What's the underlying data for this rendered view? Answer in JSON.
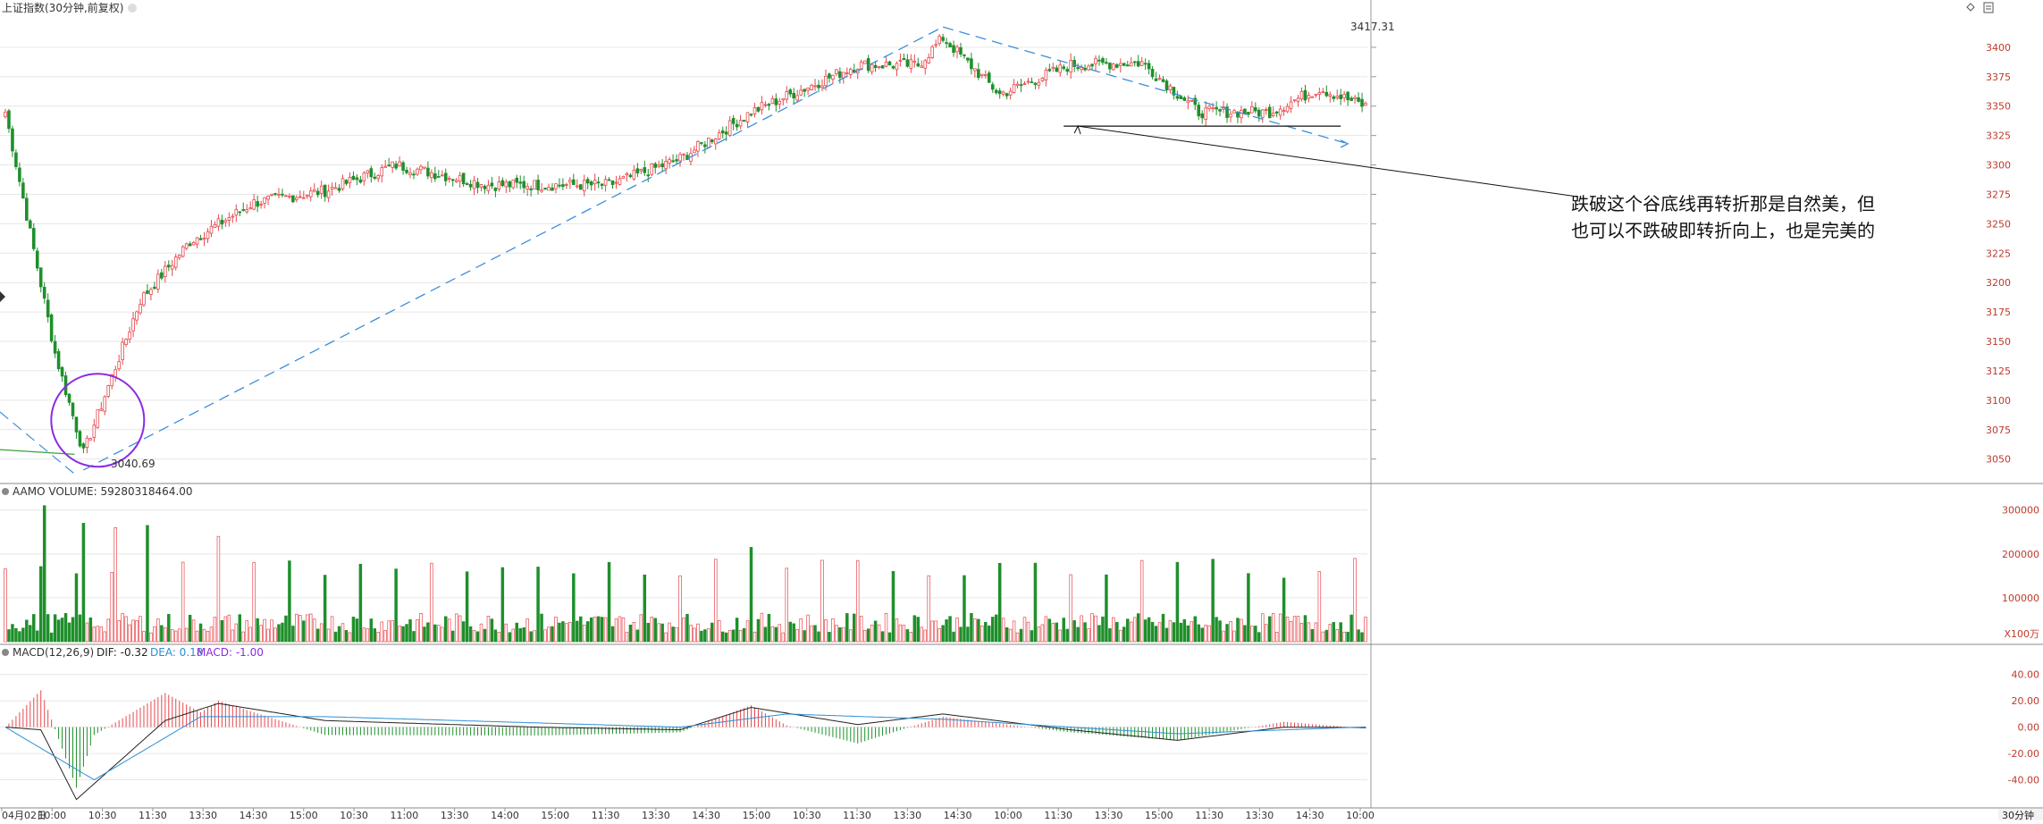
{
  "header": {
    "title": "上证指数(30分钟,前复权)",
    "volume_title": "AAMO VOLUME: 59280318464.00",
    "macd_title": "MACD(12,26,9)",
    "dif_label": "DIF: -0.32",
    "dea_label": "DEA: 0.18",
    "macd_label": "MACD: -1.00",
    "period_label": "30分钟"
  },
  "annotation": {
    "line1": "跌破这个谷底线再转折那是自然美，但",
    "line2": "也可以不跌破即转折向上，也是完美的",
    "high_label": "3417.31",
    "low_label": "3040.69"
  },
  "colors": {
    "up": "#e8484d",
    "down": "#1f8f2b",
    "dashed": "#3a8fdc",
    "circle": "#8a2be2",
    "dif": "#222222",
    "dea": "#2b8fd6",
    "axis_text": "#c0392b",
    "grid": "#e6e6e6"
  },
  "chart_data": [
    {
      "type": "candlestick",
      "title": "上证指数(30分钟,前复权)",
      "y_ticks": [
        3050,
        3075,
        3100,
        3125,
        3150,
        3175,
        3200,
        3225,
        3250,
        3275,
        3300,
        3325,
        3350,
        3375,
        3400
      ],
      "ylim": [
        3030,
        3425
      ],
      "x_tick_labels": [
        "04月02日",
        "10:00",
        "10:30",
        "11:30",
        "13:30",
        "14:30",
        "15:00",
        "10:30",
        "11:00",
        "13:30",
        "14:00",
        "15:00",
        "11:30",
        "13:30",
        "14:30",
        "15:00",
        "10:30",
        "11:30",
        "13:30",
        "14:30",
        "10:00",
        "11:30",
        "13:30",
        "15:00",
        "11:30",
        "13:30",
        "14:30",
        "10:00"
      ],
      "annotated_high": 3417.31,
      "annotated_low": 3040.69,
      "support_level": 3333,
      "key_closes": [
        {
          "bar": 0,
          "close": 3345
        },
        {
          "bar": 14,
          "close": 3140
        },
        {
          "bar": 22,
          "close": 3055
        },
        {
          "bar": 38,
          "close": 3185
        },
        {
          "bar": 52,
          "close": 3235
        },
        {
          "bar": 70,
          "close": 3268
        },
        {
          "bar": 90,
          "close": 3278
        },
        {
          "bar": 110,
          "close": 3300
        },
        {
          "bar": 136,
          "close": 3283
        },
        {
          "bar": 170,
          "close": 3283
        },
        {
          "bar": 190,
          "close": 3305
        },
        {
          "bar": 210,
          "close": 3345
        },
        {
          "bar": 240,
          "close": 3385
        },
        {
          "bar": 257,
          "close": 3385
        },
        {
          "bar": 264,
          "close": 3408
        },
        {
          "bar": 280,
          "close": 3360
        },
        {
          "bar": 300,
          "close": 3385
        },
        {
          "bar": 320,
          "close": 3387
        },
        {
          "bar": 336,
          "close": 3345
        },
        {
          "bar": 356,
          "close": 3345
        },
        {
          "bar": 370,
          "close": 3365
        },
        {
          "bar": 383,
          "close": 3350
        }
      ]
    },
    {
      "type": "bar",
      "title": "AAMO VOLUME: 59280318464.00",
      "y_ticks": [
        100000,
        200000,
        300000
      ],
      "unit": "X100万",
      "ylim": [
        0,
        330000
      ],
      "peaks": [
        {
          "bar": 11,
          "value": 310000
        },
        {
          "bar": 22,
          "value": 270000
        },
        {
          "bar": 31,
          "value": 260000
        },
        {
          "bar": 40,
          "value": 265000
        },
        {
          "bar": 60,
          "value": 240000
        },
        {
          "bar": 210,
          "value": 215000
        },
        {
          "bar": 240,
          "value": 185000
        },
        {
          "bar": 360,
          "value": 145000
        }
      ]
    },
    {
      "type": "line",
      "title": "MACD(12,26,9)",
      "series": [
        {
          "name": "DIF",
          "color": "#222222"
        },
        {
          "name": "DEA",
          "color": "#2b8fd6"
        },
        {
          "name": "MACD",
          "color": "#8a2be2"
        }
      ],
      "y_ticks": [
        40,
        20,
        0,
        -20,
        -40
      ],
      "ylim": [
        -60,
        50
      ],
      "dif_points": [
        {
          "bar": 0,
          "value": 0
        },
        {
          "bar": 10,
          "value": -2
        },
        {
          "bar": 20,
          "value": -55
        },
        {
          "bar": 45,
          "value": 5
        },
        {
          "bar": 60,
          "value": 18
        },
        {
          "bar": 90,
          "value": 5
        },
        {
          "bar": 150,
          "value": 0
        },
        {
          "bar": 190,
          "value": -2
        },
        {
          "bar": 210,
          "value": 15
        },
        {
          "bar": 240,
          "value": 2
        },
        {
          "bar": 264,
          "value": 10
        },
        {
          "bar": 300,
          "value": -2
        },
        {
          "bar": 330,
          "value": -10
        },
        {
          "bar": 360,
          "value": 0
        },
        {
          "bar": 383,
          "value": -0.32
        }
      ],
      "dea_points": [
        {
          "bar": 0,
          "value": 0
        },
        {
          "bar": 25,
          "value": -40
        },
        {
          "bar": 55,
          "value": 8
        },
        {
          "bar": 90,
          "value": 8
        },
        {
          "bar": 190,
          "value": 0
        },
        {
          "bar": 220,
          "value": 10
        },
        {
          "bar": 264,
          "value": 6
        },
        {
          "bar": 330,
          "value": -5
        },
        {
          "bar": 383,
          "value": 0.18
        }
      ]
    }
  ]
}
